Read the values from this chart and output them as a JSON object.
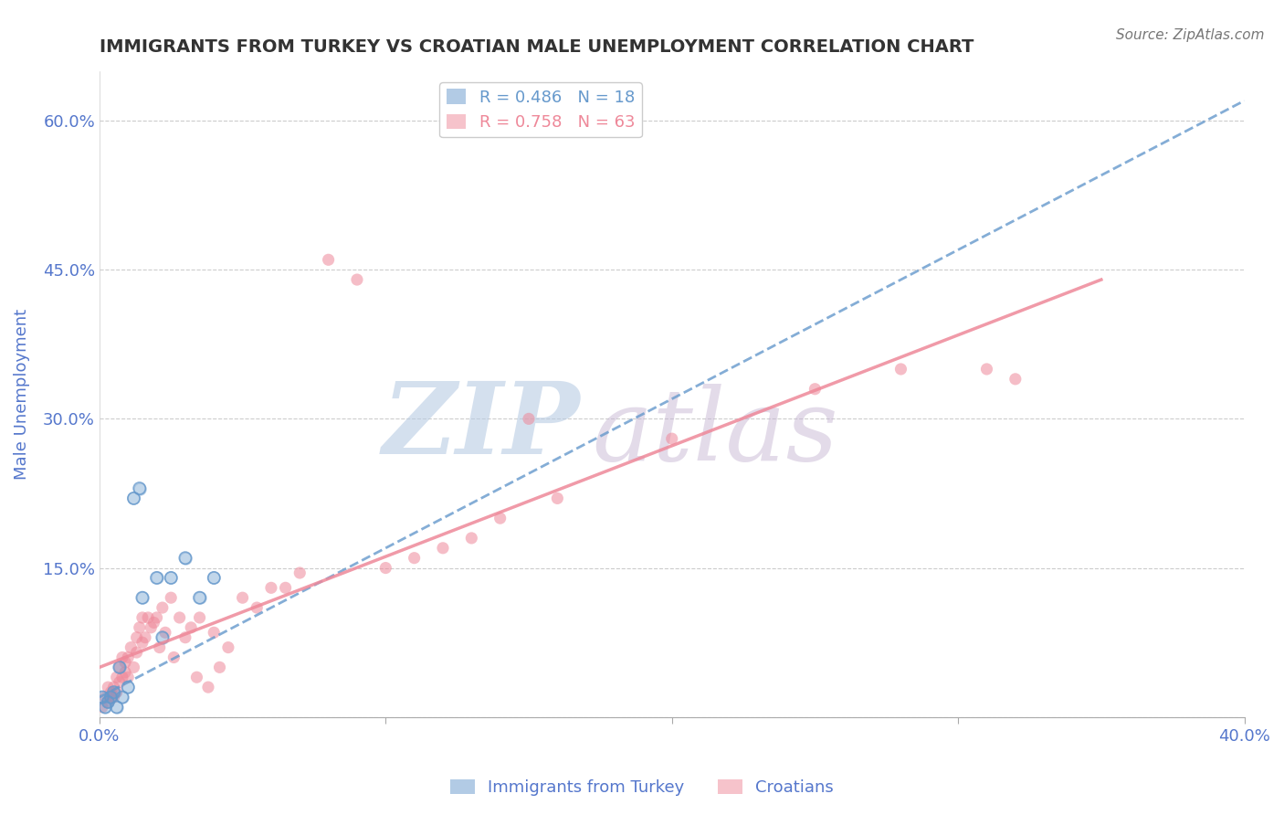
{
  "title": "IMMIGRANTS FROM TURKEY VS CROATIAN MALE UNEMPLOYMENT CORRELATION CHART",
  "source": "Source: ZipAtlas.com",
  "xlabel": "",
  "ylabel": "Male Unemployment",
  "xlim": [
    0.0,
    0.4
  ],
  "ylim": [
    0.0,
    0.65
  ],
  "xticks": [
    0.0,
    0.1,
    0.2,
    0.3,
    0.4
  ],
  "xticklabels": [
    "0.0%",
    "",
    "",
    "",
    "40.0%"
  ],
  "yticks": [
    0.0,
    0.15,
    0.3,
    0.45,
    0.6
  ],
  "yticklabels": [
    "",
    "15.0%",
    "30.0%",
    "45.0%",
    "60.0%"
  ],
  "grid_color": "#cccccc",
  "background_color": "#ffffff",
  "watermark_zip": "ZIP",
  "watermark_atlas": "atlas",
  "watermark_color_zip": "#b8cce4",
  "watermark_color_atlas": "#c8b8d4",
  "legend_R1": "R = 0.486",
  "legend_N1": "N = 18",
  "legend_R2": "R = 0.758",
  "legend_N2": "N = 63",
  "blue_color": "#6699cc",
  "pink_color": "#ee8899",
  "title_color": "#333333",
  "tick_color": "#5577cc",
  "blue_scatter": [
    [
      0.001,
      0.02
    ],
    [
      0.002,
      0.01
    ],
    [
      0.003,
      0.015
    ],
    [
      0.004,
      0.02
    ],
    [
      0.005,
      0.025
    ],
    [
      0.006,
      0.01
    ],
    [
      0.007,
      0.05
    ],
    [
      0.008,
      0.02
    ],
    [
      0.01,
      0.03
    ],
    [
      0.012,
      0.22
    ],
    [
      0.014,
      0.23
    ],
    [
      0.015,
      0.12
    ],
    [
      0.02,
      0.14
    ],
    [
      0.022,
      0.08
    ],
    [
      0.025,
      0.14
    ],
    [
      0.03,
      0.16
    ],
    [
      0.035,
      0.12
    ],
    [
      0.04,
      0.14
    ]
  ],
  "pink_scatter": [
    [
      0.001,
      0.01
    ],
    [
      0.002,
      0.02
    ],
    [
      0.003,
      0.03
    ],
    [
      0.003,
      0.015
    ],
    [
      0.004,
      0.02
    ],
    [
      0.004,
      0.025
    ],
    [
      0.005,
      0.03
    ],
    [
      0.005,
      0.02
    ],
    [
      0.006,
      0.04
    ],
    [
      0.006,
      0.025
    ],
    [
      0.007,
      0.035
    ],
    [
      0.007,
      0.05
    ],
    [
      0.008,
      0.06
    ],
    [
      0.008,
      0.04
    ],
    [
      0.009,
      0.045
    ],
    [
      0.009,
      0.055
    ],
    [
      0.01,
      0.06
    ],
    [
      0.01,
      0.04
    ],
    [
      0.011,
      0.07
    ],
    [
      0.012,
      0.05
    ],
    [
      0.013,
      0.08
    ],
    [
      0.013,
      0.065
    ],
    [
      0.014,
      0.09
    ],
    [
      0.015,
      0.1
    ],
    [
      0.015,
      0.075
    ],
    [
      0.016,
      0.08
    ],
    [
      0.017,
      0.1
    ],
    [
      0.018,
      0.09
    ],
    [
      0.019,
      0.095
    ],
    [
      0.02,
      0.1
    ],
    [
      0.021,
      0.07
    ],
    [
      0.022,
      0.11
    ],
    [
      0.023,
      0.085
    ],
    [
      0.025,
      0.12
    ],
    [
      0.026,
      0.06
    ],
    [
      0.028,
      0.1
    ],
    [
      0.03,
      0.08
    ],
    [
      0.032,
      0.09
    ],
    [
      0.034,
      0.04
    ],
    [
      0.035,
      0.1
    ],
    [
      0.038,
      0.03
    ],
    [
      0.04,
      0.085
    ],
    [
      0.042,
      0.05
    ],
    [
      0.045,
      0.07
    ],
    [
      0.05,
      0.12
    ],
    [
      0.055,
      0.11
    ],
    [
      0.06,
      0.13
    ],
    [
      0.065,
      0.13
    ],
    [
      0.07,
      0.145
    ],
    [
      0.08,
      0.46
    ],
    [
      0.09,
      0.44
    ],
    [
      0.1,
      0.15
    ],
    [
      0.11,
      0.16
    ],
    [
      0.12,
      0.17
    ],
    [
      0.13,
      0.18
    ],
    [
      0.14,
      0.2
    ],
    [
      0.15,
      0.3
    ],
    [
      0.16,
      0.22
    ],
    [
      0.2,
      0.28
    ],
    [
      0.25,
      0.33
    ],
    [
      0.28,
      0.35
    ],
    [
      0.31,
      0.35
    ],
    [
      0.32,
      0.34
    ]
  ],
  "blue_line_x": [
    0.0,
    0.4
  ],
  "blue_line_y": [
    0.02,
    0.62
  ],
  "pink_line_x": [
    0.0,
    0.35
  ],
  "pink_line_y": [
    0.05,
    0.44
  ]
}
